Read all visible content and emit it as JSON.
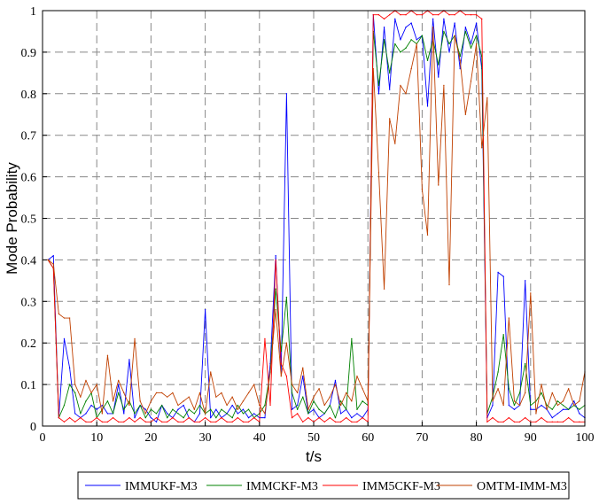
{
  "chart_data": {
    "type": "line",
    "xlabel": "t/s",
    "ylabel": "Mode Probability",
    "xlim": [
      0,
      100
    ],
    "ylim": [
      0,
      1
    ],
    "xticks": [
      0,
      10,
      20,
      30,
      40,
      50,
      60,
      70,
      80,
      90,
      100
    ],
    "yticks": [
      0,
      0.1,
      0.2,
      0.3,
      0.4,
      0.5,
      0.6,
      0.7,
      0.8,
      0.9,
      1
    ],
    "grid": true,
    "legend_position": "bottom",
    "x": [
      1,
      2,
      3,
      4,
      5,
      6,
      7,
      8,
      9,
      10,
      11,
      12,
      13,
      14,
      15,
      16,
      17,
      18,
      19,
      20,
      21,
      22,
      23,
      24,
      25,
      26,
      27,
      28,
      29,
      30,
      31,
      32,
      33,
      34,
      35,
      36,
      37,
      38,
      39,
      40,
      41,
      42,
      43,
      44,
      45,
      46,
      47,
      48,
      49,
      50,
      51,
      52,
      53,
      54,
      55,
      56,
      57,
      58,
      59,
      60,
      61,
      62,
      63,
      64,
      65,
      66,
      67,
      68,
      69,
      70,
      71,
      72,
      73,
      74,
      75,
      76,
      77,
      78,
      79,
      80,
      81,
      82,
      83,
      84,
      85,
      86,
      87,
      88,
      89,
      90,
      91,
      92,
      93,
      94,
      95,
      96,
      97,
      98,
      99,
      100
    ],
    "series": [
      {
        "name": "IMMUKF-M3",
        "color": "#0000ff",
        "values": [
          0.4,
          0.41,
          0.02,
          0.21,
          0.14,
          0.03,
          0.02,
          0.03,
          0.05,
          0.04,
          0.05,
          0.03,
          0.03,
          0.1,
          0.03,
          0.16,
          0.02,
          0.05,
          0.04,
          0.02,
          0.01,
          0.05,
          0.03,
          0.02,
          0.04,
          0.05,
          0.02,
          0.01,
          0.03,
          0.28,
          0.02,
          0.04,
          0.02,
          0.03,
          0.05,
          0.03,
          0.04,
          0.02,
          0.03,
          0.02,
          0.02,
          0.15,
          0.41,
          0.13,
          0.8,
          0.04,
          0.05,
          0.12,
          0.03,
          0.04,
          0.02,
          0.03,
          0.05,
          0.11,
          0.03,
          0.04,
          0.02,
          0.03,
          0.02,
          0.04,
          0.99,
          0.8,
          0.96,
          0.81,
          0.98,
          0.93,
          0.96,
          0.97,
          0.93,
          0.94,
          0.77,
          0.98,
          0.84,
          0.98,
          0.9,
          0.97,
          0.86,
          0.96,
          0.92,
          0.97,
          0.86,
          0.02,
          0.05,
          0.37,
          0.36,
          0.05,
          0.04,
          0.05,
          0.35,
          0.04,
          0.04,
          0.05,
          0.04,
          0.02,
          0.03,
          0.04,
          0.04,
          0.06,
          0.03,
          0.02
        ]
      },
      {
        "name": "IMMCKF-M3",
        "color": "#008000",
        "values": [
          0.4,
          0.38,
          0.02,
          0.05,
          0.1,
          0.08,
          0.03,
          0.06,
          0.08,
          0.02,
          0.04,
          0.06,
          0.03,
          0.08,
          0.04,
          0.06,
          0.03,
          0.05,
          0.02,
          0.04,
          0.03,
          0.05,
          0.02,
          0.04,
          0.03,
          0.02,
          0.04,
          0.03,
          0.05,
          0.03,
          0.04,
          0.02,
          0.04,
          0.03,
          0.02,
          0.05,
          0.03,
          0.04,
          0.02,
          0.03,
          0.05,
          0.13,
          0.33,
          0.18,
          0.31,
          0.08,
          0.04,
          0.07,
          0.03,
          0.06,
          0.04,
          0.03,
          0.05,
          0.02,
          0.06,
          0.04,
          0.21,
          0.04,
          0.06,
          0.05,
          0.95,
          0.82,
          0.93,
          0.85,
          0.92,
          0.9,
          0.91,
          0.93,
          0.92,
          0.94,
          0.88,
          0.93,
          0.87,
          0.95,
          0.92,
          0.94,
          0.89,
          0.95,
          0.91,
          0.94,
          0.89,
          0.03,
          0.07,
          0.13,
          0.22,
          0.09,
          0.05,
          0.08,
          0.15,
          0.05,
          0.06,
          0.08,
          0.05,
          0.04,
          0.06,
          0.05,
          0.04,
          0.05,
          0.04,
          0.05
        ]
      },
      {
        "name": "IMM5CKF-M3",
        "color": "#ff0000",
        "values": [
          0.4,
          0.38,
          0.02,
          0.01,
          0.02,
          0.01,
          0.02,
          0.01,
          0.01,
          0.02,
          0.01,
          0.01,
          0.02,
          0.01,
          0.01,
          0.02,
          0.01,
          0.02,
          0.01,
          0.01,
          0.02,
          0.01,
          0.01,
          0.02,
          0.01,
          0.01,
          0.02,
          0.01,
          0.01,
          0.02,
          0.01,
          0.01,
          0.02,
          0.01,
          0.01,
          0.02,
          0.01,
          0.01,
          0.02,
          0.01,
          0.21,
          0.05,
          0.4,
          0.15,
          0.12,
          0.02,
          0.03,
          0.01,
          0.02,
          0.01,
          0.02,
          0.01,
          0.02,
          0.01,
          0.01,
          0.02,
          0.01,
          0.01,
          0.02,
          0.01,
          0.99,
          0.99,
          0.98,
          0.99,
          1.0,
          0.99,
          0.99,
          1.0,
          0.99,
          0.99,
          1.0,
          0.99,
          0.99,
          1.0,
          0.99,
          0.99,
          1.0,
          0.99,
          0.99,
          0.99,
          0.98,
          0.01,
          0.02,
          0.01,
          0.01,
          0.02,
          0.01,
          0.01,
          0.02,
          0.01,
          0.01,
          0.02,
          0.01,
          0.01,
          0.01,
          0.01,
          0.02,
          0.01,
          0.01,
          0.01
        ]
      },
      {
        "name": "OMTM-IMM-M3",
        "color": "#c04000",
        "values": [
          0.4,
          0.39,
          0.27,
          0.26,
          0.26,
          0.1,
          0.07,
          0.11,
          0.08,
          0.1,
          0.03,
          0.17,
          0.06,
          0.11,
          0.08,
          0.05,
          0.21,
          0.06,
          0.03,
          0.06,
          0.08,
          0.08,
          0.07,
          0.08,
          0.05,
          0.06,
          0.07,
          0.04,
          0.08,
          0.03,
          0.13,
          0.07,
          0.08,
          0.05,
          0.07,
          0.04,
          0.06,
          0.08,
          0.1,
          0.05,
          0.03,
          0.13,
          0.28,
          0.12,
          0.2,
          0.1,
          0.08,
          0.14,
          0.04,
          0.07,
          0.09,
          0.05,
          0.07,
          0.1,
          0.05,
          0.08,
          0.06,
          0.12,
          0.09,
          0.06,
          0.86,
          0.61,
          0.33,
          0.74,
          0.68,
          0.82,
          0.8,
          0.86,
          0.92,
          0.57,
          0.46,
          0.96,
          0.58,
          0.82,
          0.34,
          0.94,
          0.88,
          0.75,
          0.83,
          0.92,
          0.67,
          0.79,
          0.06,
          0.09,
          0.05,
          0.26,
          0.06,
          0.05,
          0.08,
          0.32,
          0.03,
          0.1,
          0.04,
          0.08,
          0.05,
          0.06,
          0.09,
          0.05,
          0.06,
          0.13
        ]
      }
    ]
  }
}
